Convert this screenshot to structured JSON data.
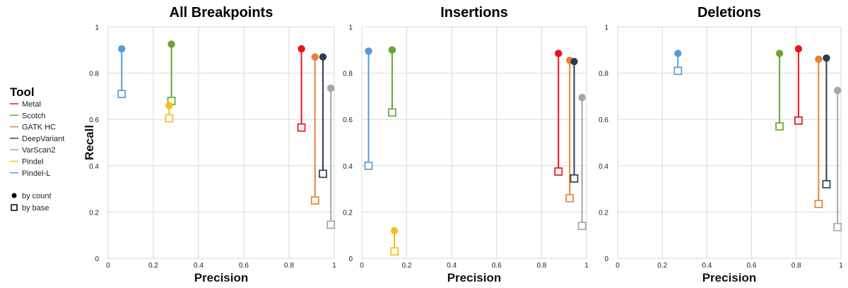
{
  "legend": {
    "title": "Tool",
    "marker_count_label": "by count",
    "marker_base_label": "by base"
  },
  "colors": {
    "Metal": "#e8141c",
    "Scotch": "#6aa534",
    "GATK HC": "#e98233",
    "DeepVariant": "#2c3e55",
    "VarScan2": "#a6a6a6",
    "Pindel": "#f7be1b",
    "Pindel-L": "#5b9bd5"
  },
  "chart_data": [
    {
      "type": "scatter",
      "title": "All Breakpoints",
      "xlabel": "Precision",
      "ylabel": "Recall",
      "xlim": [
        0,
        1
      ],
      "ylim": [
        0,
        1
      ],
      "xticks": [
        "0",
        "0.2",
        "0.4",
        "0.6",
        "0.8",
        "1"
      ],
      "yticks": [
        "0",
        "0.2",
        "0.4",
        "0.6",
        "0.8",
        "1"
      ],
      "grid": true,
      "series": [
        {
          "name": "Pindel-L",
          "count": {
            "x": 0.06,
            "y": 0.905
          },
          "base": {
            "x": 0.06,
            "y": 0.71
          }
        },
        {
          "name": "Scotch",
          "count": {
            "x": 0.28,
            "y": 0.925
          },
          "base": {
            "x": 0.28,
            "y": 0.68
          }
        },
        {
          "name": "Pindel",
          "count": {
            "x": 0.27,
            "y": 0.66
          },
          "base": {
            "x": 0.27,
            "y": 0.605
          }
        },
        {
          "name": "Metal",
          "count": {
            "x": 0.855,
            "y": 0.905
          },
          "base": {
            "x": 0.855,
            "y": 0.565
          }
        },
        {
          "name": "GATK HC",
          "count": {
            "x": 0.915,
            "y": 0.87
          },
          "base": {
            "x": 0.915,
            "y": 0.25
          }
        },
        {
          "name": "DeepVariant",
          "count": {
            "x": 0.95,
            "y": 0.87
          },
          "base": {
            "x": 0.95,
            "y": 0.365
          }
        },
        {
          "name": "VarScan2",
          "count": {
            "x": 0.985,
            "y": 0.735
          },
          "base": {
            "x": 0.985,
            "y": 0.145
          }
        }
      ]
    },
    {
      "type": "scatter",
      "title": "Insertions",
      "xlabel": "Precision",
      "ylabel": "",
      "xlim": [
        0,
        1
      ],
      "ylim": [
        0,
        1
      ],
      "xticks": [
        "0",
        "0.2",
        "0.4",
        "0.6",
        "0.8",
        "1"
      ],
      "yticks": [
        "0",
        "0.2",
        "0.4",
        "0.6",
        "0.8",
        "1"
      ],
      "grid": true,
      "series": [
        {
          "name": "Pindel-L",
          "count": {
            "x": 0.03,
            "y": 0.895
          },
          "base": {
            "x": 0.03,
            "y": 0.4
          }
        },
        {
          "name": "Scotch",
          "count": {
            "x": 0.135,
            "y": 0.9
          },
          "base": {
            "x": 0.135,
            "y": 0.63
          }
        },
        {
          "name": "Pindel",
          "count": {
            "x": 0.145,
            "y": 0.12
          },
          "base": {
            "x": 0.145,
            "y": 0.03
          }
        },
        {
          "name": "Metal",
          "count": {
            "x": 0.875,
            "y": 0.885
          },
          "base": {
            "x": 0.875,
            "y": 0.375
          }
        },
        {
          "name": "GATK HC",
          "count": {
            "x": 0.925,
            "y": 0.855
          },
          "base": {
            "x": 0.925,
            "y": 0.26
          }
        },
        {
          "name": "DeepVariant",
          "count": {
            "x": 0.945,
            "y": 0.85
          },
          "base": {
            "x": 0.945,
            "y": 0.345
          }
        },
        {
          "name": "VarScan2",
          "count": {
            "x": 0.98,
            "y": 0.695
          },
          "base": {
            "x": 0.98,
            "y": 0.14
          }
        }
      ]
    },
    {
      "type": "scatter",
      "title": "Deletions",
      "xlabel": "Precision",
      "ylabel": "",
      "xlim": [
        0,
        1
      ],
      "ylim": [
        0,
        1
      ],
      "xticks": [
        "0",
        "0.2",
        "0.4",
        "0.6",
        "0.8",
        "1"
      ],
      "yticks": [
        "0",
        "0.2",
        "0.4",
        "0.6",
        "0.8",
        "1"
      ],
      "grid": true,
      "series": [
        {
          "name": "Pindel-L",
          "count": {
            "x": 0.27,
            "y": 0.885
          },
          "base": {
            "x": 0.27,
            "y": 0.81
          }
        },
        {
          "name": "Scotch",
          "count": {
            "x": 0.725,
            "y": 0.885
          },
          "base": {
            "x": 0.725,
            "y": 0.57
          }
        },
        {
          "name": "Metal",
          "count": {
            "x": 0.81,
            "y": 0.905
          },
          "base": {
            "x": 0.81,
            "y": 0.595
          }
        },
        {
          "name": "GATK HC",
          "count": {
            "x": 0.9,
            "y": 0.86
          },
          "base": {
            "x": 0.9,
            "y": 0.235
          }
        },
        {
          "name": "DeepVariant",
          "count": {
            "x": 0.935,
            "y": 0.865
          },
          "base": {
            "x": 0.935,
            "y": 0.32
          }
        },
        {
          "name": "VarScan2",
          "count": {
            "x": 0.985,
            "y": 0.725
          },
          "base": {
            "x": 0.985,
            "y": 0.135
          }
        }
      ]
    }
  ]
}
